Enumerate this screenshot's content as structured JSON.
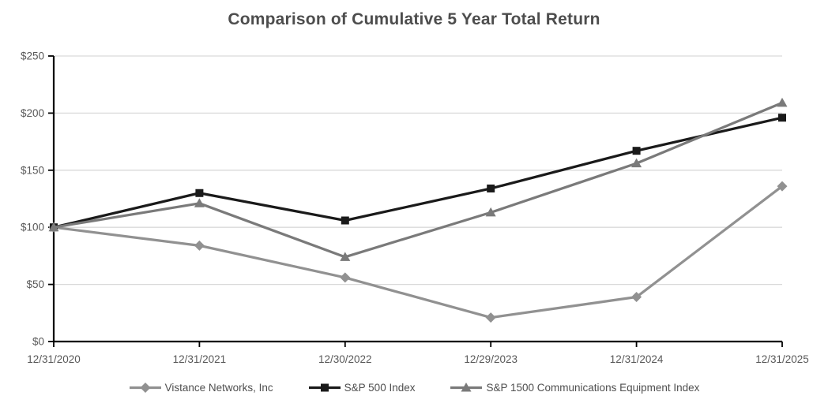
{
  "chart_data": {
    "type": "line",
    "title": "Comparison of Cumulative 5 Year Total Return",
    "categories": [
      "12/31/2020",
      "12/31/2021",
      "12/30/2022",
      "12/29/2023",
      "12/31/2024",
      "12/31/2025"
    ],
    "series": [
      {
        "name": "Vistance Networks, Inc",
        "marker": "diamond",
        "color": "#919191",
        "values": [
          100,
          84,
          56,
          21,
          39,
          136
        ]
      },
      {
        "name": "S&P 500 Index",
        "marker": "square",
        "color": "#1a1a1a",
        "values": [
          100,
          130,
          106,
          134,
          167,
          196
        ]
      },
      {
        "name": "S&P 1500 Communications Equipment Index",
        "marker": "triangle",
        "color": "#7a7a7a",
        "values": [
          100,
          121,
          74,
          113,
          156,
          209
        ]
      }
    ],
    "y_axis": {
      "range": [
        0,
        250
      ],
      "ticks": [
        0,
        50,
        100,
        150,
        200,
        250
      ],
      "tick_labels": [
        "$0",
        "$50",
        "$100",
        "$150",
        "$200",
        "$250"
      ]
    },
    "grid": true,
    "legend_position": "bottom",
    "colors": {
      "gridline": "#d9d9d9",
      "axis": "#000000",
      "tick_text": "#595959",
      "title_text": "#4d4d4d",
      "legend_text": "#4f4f4f",
      "background": "#ffffff"
    }
  }
}
